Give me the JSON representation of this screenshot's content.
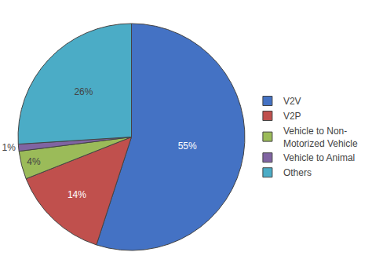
{
  "chart_data": {
    "type": "pie",
    "categories": [
      "V2V",
      "V2P",
      "Vehicle to Non-\nMotorized Vehicle",
      "Vehicle to Animal",
      "Others"
    ],
    "values": [
      55,
      14,
      4,
      1,
      26
    ],
    "value_labels": [
      "55%",
      "14%",
      "4%",
      "1%",
      "26%"
    ],
    "colors": [
      "#4472C4",
      "#C0504D",
      "#9BBB59",
      "#8064A2",
      "#4BACC6"
    ],
    "data_labels": true,
    "legend": "right"
  }
}
